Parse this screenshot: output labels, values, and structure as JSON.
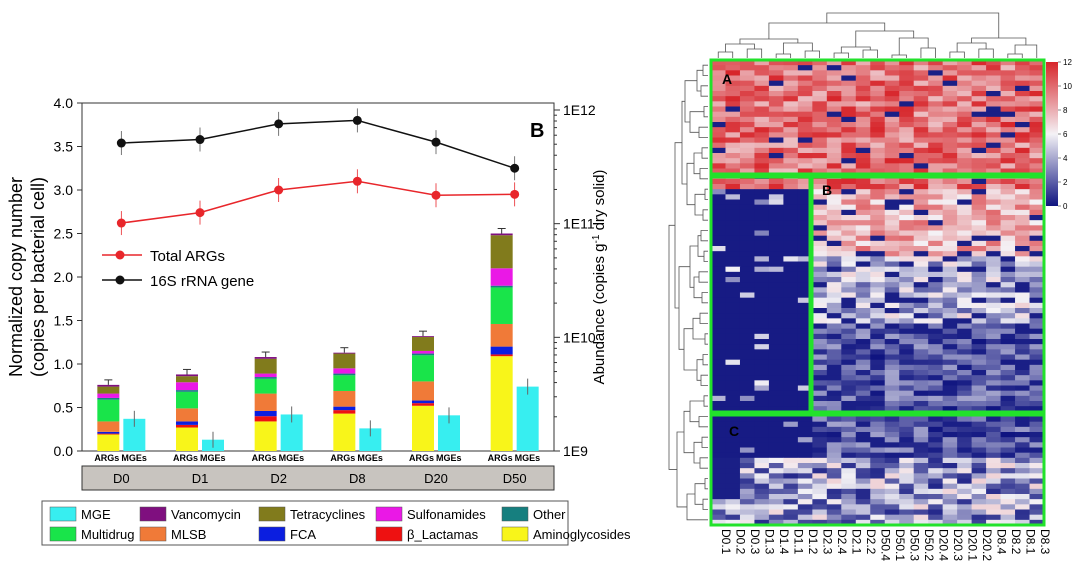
{
  "chart_data": [
    {
      "type": "bar+line",
      "panel_label": "B",
      "ylabel_left_1": "Normalized copy number",
      "ylabel_left_2": "(copies per bacterial cell)",
      "ylabel_right_pre": "Abundance (copies g",
      "ylabel_right_sup": "-1",
      "ylabel_right_post": " dry solid)",
      "ylim_left": [
        0,
        4.0
      ],
      "yticks_left": [
        "0.0",
        "0.5",
        "1.0",
        "1.5",
        "2.0",
        "2.5",
        "3.0",
        "3.5",
        "4.0"
      ],
      "yticks_right": [
        "1E9",
        "1E10",
        "1E11",
        "1E12"
      ],
      "right_axis_log_range": [
        9,
        12
      ],
      "days": [
        "D0",
        "D1",
        "D2",
        "D8",
        "D20",
        "D50"
      ],
      "bar_sublabels": [
        "ARGs",
        "MGEs"
      ],
      "stack_order": [
        "Aminoglycosides",
        "β_Lactamas",
        "FCA",
        "MLSB",
        "Multidrug",
        "Other",
        "Sulfonamides",
        "Tetracyclines",
        "Vancomycin"
      ],
      "arg_stacks": [
        [
          0.19,
          0.01,
          0.02,
          0.12,
          0.25,
          0.02,
          0.05,
          0.08,
          0.02
        ],
        [
          0.27,
          0.03,
          0.04,
          0.15,
          0.19,
          0.02,
          0.09,
          0.07,
          0.02
        ],
        [
          0.34,
          0.06,
          0.06,
          0.2,
          0.17,
          0.02,
          0.04,
          0.17,
          0.02
        ],
        [
          0.43,
          0.04,
          0.04,
          0.18,
          0.18,
          0.02,
          0.06,
          0.17,
          0.01
        ],
        [
          0.52,
          0.03,
          0.03,
          0.22,
          0.3,
          0.02,
          0.03,
          0.16,
          0.01
        ],
        [
          1.09,
          0.02,
          0.09,
          0.26,
          0.42,
          0.02,
          0.2,
          0.38,
          0.02
        ]
      ],
      "mge_values": [
        0.37,
        0.13,
        0.42,
        0.26,
        0.41,
        0.74
      ],
      "series_lines": [
        {
          "name": "Total ARGs",
          "color": "#e8262b",
          "left_values": [
            2.62,
            2.74,
            3.0,
            3.1,
            2.94,
            2.95
          ]
        },
        {
          "name": "16S rRNA gene",
          "color": "#111111",
          "left_values": [
            3.54,
            3.58,
            3.76,
            3.8,
            3.55,
            3.25
          ]
        }
      ],
      "legend_items": [
        {
          "label": "MGE",
          "color": "#37eef0"
        },
        {
          "label": "Vancomycin",
          "color": "#7f0f7f"
        },
        {
          "label": "Tetracyclines",
          "color": "#817b1c"
        },
        {
          "label": "Sulfonamides",
          "color": "#ea18e6"
        },
        {
          "label": "Other",
          "color": "#167f7f"
        },
        {
          "label": "Multidrug",
          "color": "#19e44a"
        },
        {
          "label": "MLSB",
          "color": "#f07a38"
        },
        {
          "label": "FCA",
          "color": "#0b1ee0"
        },
        {
          "label": "β_Lactamas",
          "color": "#ee1111"
        },
        {
          "label": "Aminoglycosides",
          "color": "#f8f51a"
        }
      ]
    },
    {
      "type": "heatmap",
      "colorbar_ticks": [
        "12",
        "10",
        "8",
        "6",
        "4",
        "2",
        "0"
      ],
      "value_range": [
        0,
        12
      ],
      "cluster_labels": [
        "A",
        "B",
        "C"
      ],
      "column_labels": [
        "D0.1",
        "D0.2",
        "D0.3",
        "D1.3",
        "D1.4",
        "D1.1",
        "D1.2",
        "D2.3",
        "D2.4",
        "D2.1",
        "D2.2",
        "D50.4",
        "D50.1",
        "D50.3",
        "D50.2",
        "D20.4",
        "D20.3",
        "D20.1",
        "D20.2",
        "D8.4",
        "D8.2",
        "D8.1",
        "D8.3"
      ]
    }
  ]
}
